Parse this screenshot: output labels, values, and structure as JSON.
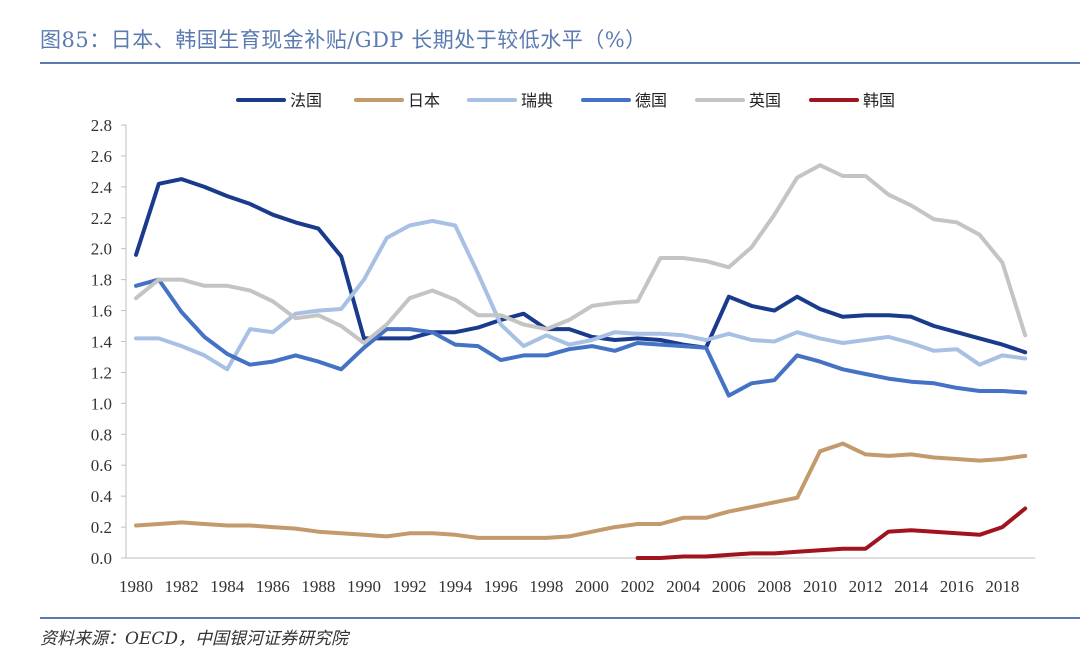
{
  "header": {
    "title": "图85：日本、韩国生育现金补贴/GDP 长期处于较低水平（%）"
  },
  "footer": {
    "source": "资料来源：OECD，中国银河证券研究院"
  },
  "chart_data": {
    "type": "line",
    "title": "",
    "xlabel": "",
    "ylabel": "",
    "ylim": [
      0,
      2.8
    ],
    "yticks": [
      "0.0",
      "0.2",
      "0.4",
      "0.6",
      "0.8",
      "1.0",
      "1.2",
      "1.4",
      "1.6",
      "1.8",
      "2.0",
      "2.2",
      "2.4",
      "2.6",
      "2.8"
    ],
    "xticks": [
      "1980",
      "1982",
      "1984",
      "1986",
      "1988",
      "1990",
      "1992",
      "1994",
      "1996",
      "1998",
      "2000",
      "2002",
      "2004",
      "2006",
      "2008",
      "2010",
      "2012",
      "2014",
      "2016",
      "2018"
    ],
    "x": [
      1980,
      1981,
      1982,
      1983,
      1984,
      1985,
      1986,
      1987,
      1988,
      1989,
      1990,
      1991,
      1992,
      1993,
      1994,
      1995,
      1996,
      1997,
      1998,
      1999,
      2000,
      2001,
      2002,
      2003,
      2004,
      2005,
      2006,
      2007,
      2008,
      2009,
      2010,
      2011,
      2012,
      2013,
      2014,
      2015,
      2016,
      2017,
      2018,
      2019
    ],
    "grid": false,
    "legend_position": "top",
    "series": [
      {
        "name": "法国",
        "color": "#1a3a8c",
        "values": [
          1.96,
          2.42,
          2.45,
          2.4,
          2.34,
          2.29,
          2.22,
          2.17,
          2.13,
          1.95,
          1.42,
          1.42,
          1.42,
          1.46,
          1.46,
          1.49,
          1.54,
          1.58,
          1.48,
          1.48,
          1.43,
          1.41,
          1.42,
          1.41,
          1.38,
          1.36,
          1.69,
          1.63,
          1.6,
          1.69,
          1.61,
          1.56,
          1.57,
          1.57,
          1.56,
          1.5,
          1.46,
          1.42,
          1.38,
          1.33
        ]
      },
      {
        "name": "日本",
        "color": "#c29a6b",
        "values": [
          0.21,
          0.22,
          0.23,
          0.22,
          0.21,
          0.21,
          0.2,
          0.19,
          0.17,
          0.16,
          0.15,
          0.14,
          0.16,
          0.16,
          0.15,
          0.13,
          0.13,
          0.13,
          0.13,
          0.14,
          0.17,
          0.2,
          0.22,
          0.22,
          0.26,
          0.26,
          0.3,
          0.33,
          0.36,
          0.39,
          0.69,
          0.74,
          0.67,
          0.66,
          0.67,
          0.65,
          0.64,
          0.63,
          0.64,
          0.66
        ]
      },
      {
        "name": "瑞典",
        "color": "#a8c0e4",
        "values": [
          1.42,
          1.42,
          1.37,
          1.31,
          1.22,
          1.48,
          1.46,
          1.58,
          1.6,
          1.61,
          1.8,
          2.07,
          2.15,
          2.18,
          2.15,
          1.84,
          1.51,
          1.37,
          1.44,
          1.38,
          1.41,
          1.46,
          1.45,
          1.45,
          1.44,
          1.41,
          1.45,
          1.41,
          1.4,
          1.46,
          1.42,
          1.39,
          1.41,
          1.43,
          1.39,
          1.34,
          1.35,
          1.25,
          1.31,
          1.29
        ]
      },
      {
        "name": "德国",
        "color": "#4472c4",
        "values": [
          1.76,
          1.8,
          1.59,
          1.43,
          1.32,
          1.25,
          1.27,
          1.31,
          1.27,
          1.22,
          1.36,
          1.48,
          1.48,
          1.46,
          1.38,
          1.37,
          1.28,
          1.31,
          1.31,
          1.35,
          1.37,
          1.34,
          1.39,
          1.38,
          1.37,
          1.36,
          1.05,
          1.13,
          1.15,
          1.31,
          1.27,
          1.22,
          1.19,
          1.16,
          1.14,
          1.13,
          1.1,
          1.08,
          1.08,
          1.07
        ]
      },
      {
        "name": "英国",
        "color": "#c4c4c4",
        "values": [
          1.68,
          1.8,
          1.8,
          1.76,
          1.76,
          1.73,
          1.66,
          1.55,
          1.57,
          1.5,
          1.39,
          1.51,
          1.68,
          1.73,
          1.67,
          1.57,
          1.57,
          1.51,
          1.48,
          1.54,
          1.63,
          1.65,
          1.66,
          1.94,
          1.94,
          1.92,
          1.88,
          2.01,
          2.22,
          2.46,
          2.54,
          2.47,
          2.47,
          2.35,
          2.28,
          2.19,
          2.17,
          2.09,
          1.91,
          1.44
        ]
      },
      {
        "name": "韩国",
        "color": "#a0141e",
        "values": [
          null,
          null,
          null,
          null,
          null,
          null,
          null,
          null,
          null,
          null,
          null,
          null,
          null,
          null,
          null,
          null,
          null,
          null,
          null,
          null,
          null,
          null,
          0.0,
          0.0,
          0.01,
          0.01,
          0.02,
          0.03,
          0.03,
          0.04,
          0.05,
          0.06,
          0.06,
          0.17,
          0.18,
          0.17,
          0.16,
          0.15,
          0.2,
          0.32
        ]
      }
    ]
  }
}
